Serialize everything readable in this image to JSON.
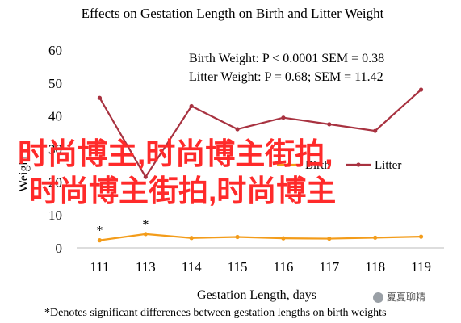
{
  "chart_data": {
    "type": "line",
    "title": "Effects on Gestation Length on Birth and Litter Weight",
    "xlabel": "Gestation Length, days",
    "ylabel": "Weight",
    "categories": [
      "111",
      "113",
      "114",
      "115",
      "116",
      "117",
      "118",
      "119"
    ],
    "ylim": [
      0,
      60
    ],
    "yticks": [
      "0",
      "10",
      "20",
      "30",
      "40",
      "50",
      "60"
    ],
    "series": [
      {
        "name": "Birth",
        "color": "#f39c1a",
        "values": [
          2.3,
          4.2,
          3.0,
          3.3,
          2.9,
          2.8,
          3.1,
          3.4
        ]
      },
      {
        "name": "Litter",
        "color": "#a83240",
        "values": [
          45.5,
          21.5,
          43.0,
          36.0,
          39.5,
          37.5,
          35.5,
          48.0
        ]
      }
    ],
    "stats": [
      "Birth Weight: P < 0.0001 SEM = 0.38",
      "Litter Weight: P = 0.68; SEM = 11.42"
    ],
    "significance_markers": [
      {
        "category": "111",
        "label": "*"
      },
      {
        "category": "113",
        "label": "*"
      }
    ],
    "footnote": "*Denotes significant differences between gestation lengths on birth weights",
    "grid": false,
    "legend_position": "center-right"
  },
  "overlay": {
    "line1": "时尚博主,时尚博主街拍,",
    "line2": "时尚博主街拍,时尚博主"
  },
  "watermark": {
    "text": "夏夏聊精",
    "icon": "wechat-icon"
  }
}
